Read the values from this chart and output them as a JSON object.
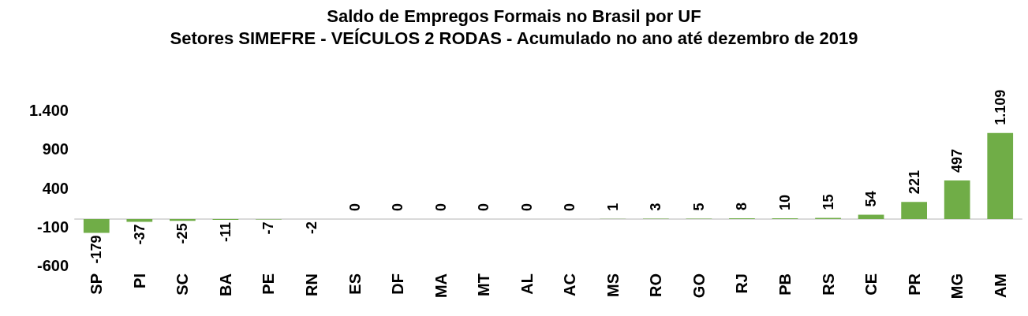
{
  "chart_data": {
    "type": "bar",
    "title": "Saldo de Empregos Formais no Brasil por UF",
    "subtitle": "Setores SIMEFRE - VEÍCULOS 2 RODAS - Acumulado no ano até dezembro de 2019",
    "categories": [
      "SP",
      "PI",
      "SC",
      "BA",
      "PE",
      "RN",
      "ES",
      "DF",
      "MA",
      "MT",
      "AL",
      "AC",
      "MS",
      "RO",
      "GO",
      "RJ",
      "PB",
      "RS",
      "CE",
      "PR",
      "MG",
      "AM"
    ],
    "values": [
      -179,
      -37,
      -25,
      -11,
      -7,
      -2,
      0,
      0,
      0,
      0,
      0,
      0,
      1,
      3,
      5,
      8,
      10,
      15,
      54,
      221,
      497,
      1109
    ],
    "value_labels": [
      "-179",
      "-37",
      "-25",
      "-11",
      "-7",
      "-2",
      "0",
      "0",
      "0",
      "0",
      "0",
      "0",
      "1",
      "3",
      "5",
      "8",
      "10",
      "15",
      "54",
      "221",
      "497",
      "1.109"
    ],
    "color": "#70ad47",
    "ylim": [
      -600,
      1400
    ],
    "yticks": [
      -600,
      -100,
      400,
      900,
      {
        "value": 1400,
        "label": "1.400"
      }
    ],
    "grid": false
  }
}
